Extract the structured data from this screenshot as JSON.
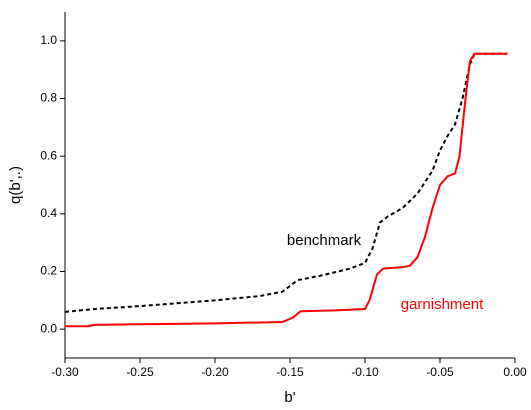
{
  "chart_data": {
    "type": "line",
    "xlabel": "b'",
    "ylabel": "q(b',.)",
    "xlim": [
      -0.3,
      0.0
    ],
    "ylim": [
      -0.1,
      1.1
    ],
    "xticks": [
      {
        "value": -0.3,
        "label": "-0.30"
      },
      -0.25,
      {
        "value": -0.2,
        "label": "-0.20"
      },
      -0.15,
      {
        "value": -0.1,
        "label": "-0.10"
      },
      -0.05,
      {
        "value": 0.0,
        "label": "0.00"
      }
    ],
    "yticks": [
      {
        "value": 0.0,
        "label": "0.0"
      },
      0.2,
      0.4,
      0.6,
      0.8,
      {
        "value": 1.0,
        "label": "1.0"
      }
    ],
    "series": [
      {
        "name": "benchmark",
        "color": "#000000",
        "dash": true,
        "x": [
          -0.3,
          -0.28,
          -0.25,
          -0.2,
          -0.17,
          -0.155,
          -0.145,
          -0.13,
          -0.11,
          -0.1,
          -0.095,
          -0.09,
          -0.085,
          -0.075,
          -0.065,
          -0.055,
          -0.05,
          -0.045,
          -0.04,
          -0.035,
          -0.03,
          -0.027,
          -0.02,
          -0.005
        ],
        "values": [
          0.06,
          0.07,
          0.08,
          0.1,
          0.115,
          0.13,
          0.17,
          0.185,
          0.21,
          0.23,
          0.28,
          0.37,
          0.39,
          0.42,
          0.47,
          0.55,
          0.62,
          0.67,
          0.71,
          0.8,
          0.92,
          0.955,
          0.955,
          0.955
        ]
      },
      {
        "name": "garnishment",
        "color": "#ff0000",
        "dash": false,
        "x": [
          -0.3,
          -0.285,
          -0.28,
          -0.25,
          -0.2,
          -0.155,
          -0.148,
          -0.143,
          -0.12,
          -0.1,
          -0.097,
          -0.092,
          -0.088,
          -0.075,
          -0.07,
          -0.065,
          -0.06,
          -0.055,
          -0.05,
          -0.045,
          -0.04,
          -0.037,
          -0.033,
          -0.03,
          -0.027,
          -0.005
        ],
        "values": [
          0.01,
          0.01,
          0.015,
          0.017,
          0.02,
          0.025,
          0.04,
          0.062,
          0.065,
          0.07,
          0.1,
          0.19,
          0.21,
          0.215,
          0.22,
          0.25,
          0.32,
          0.42,
          0.5,
          0.53,
          0.54,
          0.6,
          0.8,
          0.93,
          0.955,
          0.955
        ]
      }
    ]
  }
}
